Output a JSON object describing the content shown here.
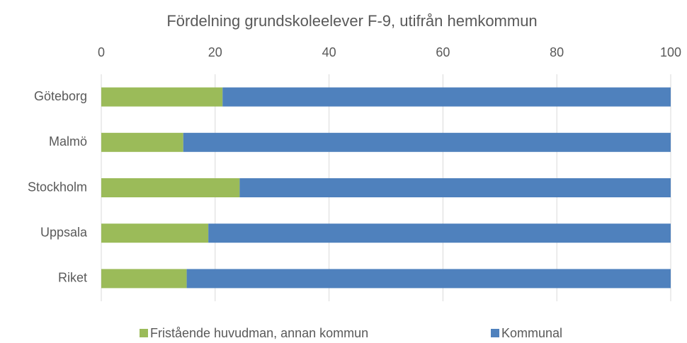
{
  "chart_data": {
    "type": "bar",
    "orientation": "horizontal",
    "stacked": true,
    "title": "Fördelning grundskoleelever F-9, utifrån hemkommun",
    "categories": [
      "Göteborg",
      "Malmö",
      "Stockholm",
      "Uppsala",
      "Riket"
    ],
    "series": [
      {
        "name": "Fristående huvudman, annan kommun",
        "color": "#9bbb59",
        "values": [
          21.3,
          14.4,
          24.3,
          18.8,
          15.0
        ]
      },
      {
        "name": "Kommunal",
        "color": "#4f81bd",
        "values": [
          78.7,
          85.6,
          75.7,
          81.2,
          85.0
        ]
      }
    ],
    "xlim": [
      0,
      100
    ],
    "xticks": [
      0,
      20,
      40,
      60,
      80,
      100
    ],
    "grid": true,
    "legend": "bottom"
  }
}
